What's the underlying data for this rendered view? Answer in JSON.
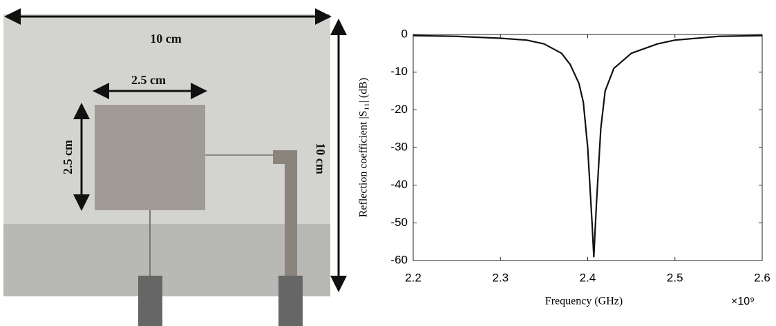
{
  "photo": {
    "labels": [
      "10 cm",
      "2.5 cm",
      "2.5 cm",
      "10 cm"
    ]
  },
  "chart_data": {
    "type": "line",
    "x": [
      2.2,
      2.25,
      2.3,
      2.33,
      2.35,
      2.37,
      2.38,
      2.39,
      2.395,
      2.4,
      2.405,
      2.407,
      2.41,
      2.415,
      2.42,
      2.43,
      2.45,
      2.48,
      2.5,
      2.55,
      2.6
    ],
    "values": [
      -0.3,
      -0.5,
      -1,
      -1.5,
      -2.5,
      -5,
      -8,
      -13,
      -18,
      -30,
      -50,
      -59,
      -45,
      -25,
      -15,
      -9,
      -5,
      -2.5,
      -1.5,
      -0.5,
      -0.3
    ],
    "color": "#111111",
    "xlabel": "Frequency (GHz)",
    "ylabel": "Reflection coefficient |S₁₁| (dB)",
    "x_multiplier": "×10⁹",
    "xlim": [
      2.2,
      2.6
    ],
    "xticks": [
      2.2,
      2.3,
      2.4,
      2.5,
      2.6
    ],
    "ylim": [
      -60,
      0
    ],
    "yticks": [
      0,
      -10,
      -20,
      -30,
      -40,
      -50,
      -60
    ],
    "grid": false
  }
}
